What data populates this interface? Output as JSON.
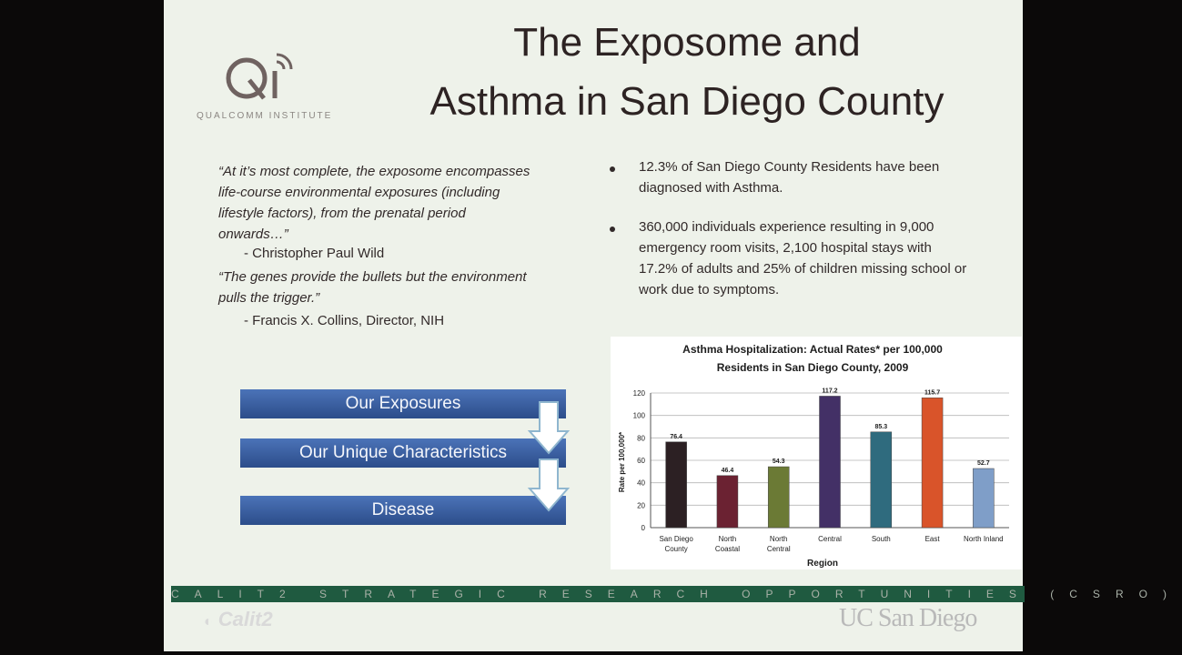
{
  "slide": {
    "title_line1": "The Exposome and",
    "title_line2": "Asthma in San Diego County",
    "logo_mark": "Qi",
    "logo_text": "QUALCOMM INSTITUTE",
    "quote1": [
      "“At it’s most complete, the exposome encompasses",
      "life-course environmental exposures (including",
      "lifestyle factors), from the prenatal period",
      "onwards…”"
    ],
    "attribution1": "- Christopher Paul Wild",
    "quote2": [
      "“The genes provide the bullets but the environment",
      "pulls the trigger.”"
    ],
    "attribution2": "- Francis X. Collins, Director, NIH",
    "bullet1": [
      "12.3% of San Diego County Residents have been",
      "diagnosed with Asthma."
    ],
    "bullet2": [
      "360,000 individuals experience resulting in 9,000",
      "emergency room visits, 2,100 hospital stays with",
      "17.2% of adults and 25% of children missing school or",
      "work due to symptoms."
    ],
    "flow": [
      "Our Exposures",
      "Our Unique Characteristics",
      "Disease"
    ],
    "footer": "CALIT2 STRATEGIC RESEARCH OPPORTUNITIES (CSRO)",
    "calit2_logo": "Calit2",
    "ucsd_logo": "UC San Diego"
  },
  "chart_data": {
    "type": "bar",
    "title": "Asthma Hospitalization: Actual Rates* per 100,000",
    "subtitle": "Residents in San Diego County, 2009",
    "xlabel": "Region",
    "ylabel": "Rate per 100,000*",
    "ylim": [
      0,
      120
    ],
    "yticks": [
      0,
      20,
      40,
      60,
      80,
      100,
      120
    ],
    "categories": [
      [
        "San Diego",
        "County"
      ],
      [
        "North",
        "Coastal"
      ],
      [
        "North",
        "Central"
      ],
      [
        "Central"
      ],
      [
        "South"
      ],
      [
        "East"
      ],
      [
        "North Inland"
      ]
    ],
    "values": [
      76.4,
      46.4,
      54.3,
      117.2,
      85.3,
      115.7,
      52.7
    ],
    "value_labels": [
      "76.4",
      "46.4",
      "54.3",
      "117.2",
      "85.3",
      "115.7",
      "52.7"
    ],
    "colors": [
      "#2c2023",
      "#6b2232",
      "#6b7a35",
      "#433066",
      "#2f6b7e",
      "#d9542a",
      "#7f9ec8"
    ],
    "grid": true
  }
}
